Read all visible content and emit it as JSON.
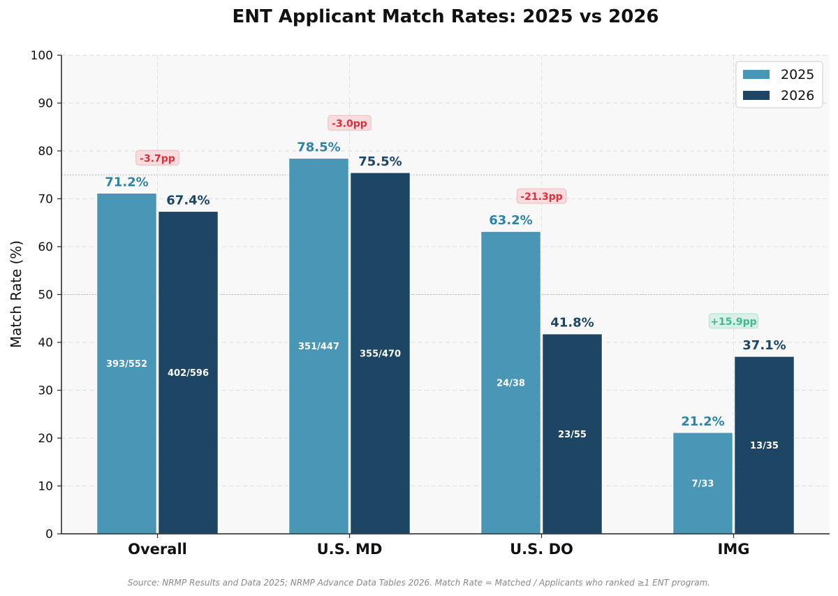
{
  "chart_data": {
    "type": "bar",
    "title": "ENT Applicant Match Rates: 2025 vs 2026",
    "xlabel": "",
    "ylabel": "Match Rate (%)",
    "ylim": [
      0,
      100
    ],
    "yticks": [
      0,
      10,
      20,
      30,
      40,
      50,
      60,
      70,
      80,
      90,
      100
    ],
    "categories": [
      "Overall",
      "U.S. MD",
      "U.S. DO",
      "IMG"
    ],
    "series": [
      {
        "name": "2025",
        "color": "#4a96b6",
        "label_color": "#2d84a8",
        "values": [
          71.2,
          78.5,
          63.2,
          21.2
        ],
        "value_labels": [
          "71.2%",
          "78.5%",
          "63.2%",
          "21.2%"
        ],
        "inner_labels": [
          "393/552",
          "351/447",
          "24/38",
          "7/33"
        ]
      },
      {
        "name": "2026",
        "color": "#1d4664",
        "label_color": "#1d4664",
        "values": [
          67.4,
          75.5,
          41.8,
          37.1
        ],
        "value_labels": [
          "67.4%",
          "75.5%",
          "41.8%",
          "37.1%"
        ],
        "inner_labels": [
          "402/596",
          "355/470",
          "23/55",
          "13/35"
        ]
      }
    ],
    "deltas": [
      {
        "label": "-3.7pp",
        "value": -3.7
      },
      {
        "label": "-3.0pp",
        "value": -3.0
      },
      {
        "label": "-21.3pp",
        "value": -21.3
      },
      {
        "label": "+15.9pp",
        "value": 15.9
      }
    ],
    "reference_lines": [
      50,
      75
    ],
    "grid": true,
    "legend_position": "top-right",
    "source_note": "Source: NRMP Results and Data 2025; NRMP Advance Data Tables 2026. Match Rate = Matched / Applicants who ranked ≥1 ENT program."
  },
  "colors": {
    "negative": "#d9303e",
    "negative_bg": "#f9d9dc",
    "positive": "#3fb893",
    "positive_bg": "#d5f0e6",
    "plot_bg": "#f8f8f8"
  }
}
